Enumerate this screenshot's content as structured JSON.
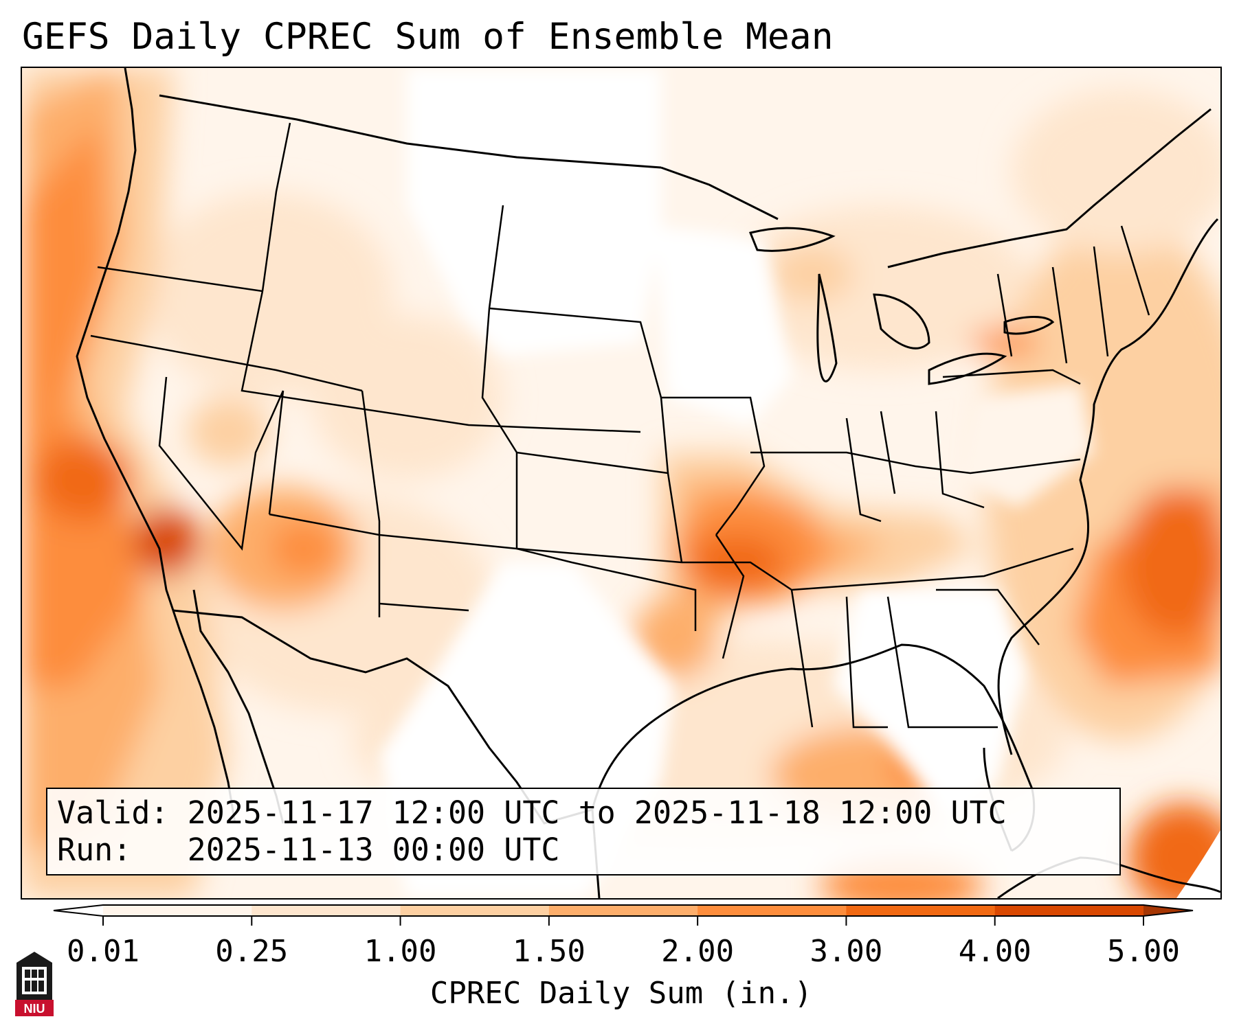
{
  "title": "GEFS Daily CPREC Sum of Ensemble Mean",
  "info_box": {
    "valid_label": "Valid:",
    "valid_value": "2025-11-17 12:00 UTC to 2025-11-18 12:00 UTC",
    "run_label": "Run:",
    "run_value": "2025-11-13 00:00 UTC"
  },
  "colorbar": {
    "label": "CPREC Daily Sum (in.)",
    "ticks": [
      "0.01",
      "0.25",
      "1.00",
      "1.50",
      "2.00",
      "3.00",
      "4.00",
      "5.00"
    ],
    "colors": [
      "#fff5eb",
      "#fee6ce",
      "#fdd0a2",
      "#fdae6b",
      "#fd8d3c",
      "#f16913",
      "#d94801",
      "#a63603"
    ],
    "extend": "both"
  },
  "logo": {
    "text": "NIU",
    "brand_color": "#c8102e",
    "icon": "university-tower-icon"
  },
  "map": {
    "region": "Contiguous United States and surrounding waters",
    "projection": "lambert-conformal",
    "features": [
      "coastlines",
      "country-borders",
      "state-borders"
    ]
  }
}
